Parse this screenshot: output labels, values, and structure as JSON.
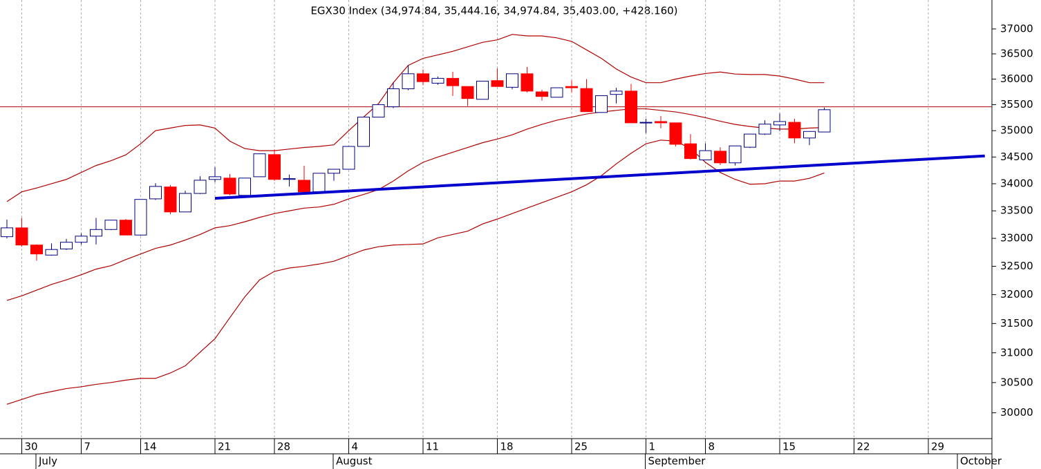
{
  "chart_data": {
    "type": "candlestick",
    "title": "EGX30 Index (34,974.84, 35,444.16, 34,974.84, 35,403.00, +428.160)",
    "categories": [
      null,
      "30",
      null,
      null,
      null,
      "7",
      null,
      null,
      null,
      "14",
      null,
      null,
      null,
      null,
      "21",
      null,
      null,
      null,
      "28",
      null,
      null,
      null,
      null,
      "4",
      null,
      null,
      null,
      null,
      "11",
      null,
      null,
      null,
      null,
      "18",
      null,
      null,
      null,
      null,
      "25",
      null,
      null,
      null,
      null,
      "1",
      null,
      null,
      null,
      "8",
      null,
      null,
      null,
      null,
      "15",
      null,
      null,
      null,
      null,
      "22",
      null,
      null,
      null,
      null,
      "29",
      null,
      null,
      null,
      null
    ],
    "month_labels": [
      null,
      null,
      "July",
      null,
      null,
      null,
      null,
      null,
      null,
      null,
      null,
      null,
      null,
      null,
      null,
      null,
      null,
      null,
      null,
      null,
      null,
      null,
      "August",
      null,
      null,
      null,
      null,
      null,
      null,
      null,
      null,
      null,
      null,
      null,
      null,
      null,
      null,
      null,
      null,
      null,
      null,
      null,
      null,
      "September",
      null,
      null,
      null,
      null,
      null,
      null,
      null,
      null,
      null,
      null,
      null,
      null,
      null,
      null,
      null,
      null,
      null,
      null,
      null,
      null,
      "October",
      null,
      null
    ],
    "open": [
      33030,
      33190,
      32880,
      32700,
      32810,
      32930,
      33040,
      33160,
      33330,
      33060,
      33720,
      33940,
      33480,
      33820,
      34080,
      34105,
      33785,
      34130,
      34545,
      34080,
      34065,
      33850,
      34195,
      34270,
      34700,
      35260,
      35460,
      35810,
      36105,
      35920,
      36015,
      35855,
      35605,
      35970,
      35840,
      36105,
      35750,
      35645,
      35855,
      35815,
      35350,
      35700,
      35765,
      35150,
      35175,
      35150,
      34750,
      34445,
      34610,
      34390,
      34685,
      34935,
      35110,
      35160,
      34860,
      34974.84,
      null,
      null,
      null,
      null,
      null,
      null,
      null,
      null,
      null,
      null,
      null
    ],
    "high": [
      33340,
      33370,
      32890,
      32910,
      32990,
      33090,
      33370,
      33330,
      33350,
      33710,
      34010,
      33975,
      33870,
      34140,
      34310,
      34180,
      34105,
      34560,
      34640,
      34170,
      34335,
      34195,
      34270,
      34700,
      35260,
      35500,
      35930,
      36270,
      36190,
      36050,
      36145,
      35855,
      35960,
      36210,
      36105,
      36240,
      35790,
      35830,
      35975,
      36000,
      35675,
      35830,
      35905,
      35230,
      35280,
      35150,
      34935,
      34760,
      34685,
      34710,
      34935,
      35200,
      35330,
      35230,
      34985,
      35444.16,
      null,
      null,
      null,
      null,
      null,
      null,
      null,
      null,
      null,
      null,
      null
    ],
    "low": [
      33000,
      32850,
      32600,
      32690,
      32790,
      32890,
      32890,
      33150,
      33060,
      33050,
      33700,
      33440,
      33480,
      33810,
      34030,
      33785,
      33770,
      34130,
      34055,
      33950,
      33825,
      33835,
      34055,
      34270,
      34700,
      35260,
      35435,
      35785,
      35880,
      35890,
      35670,
      35475,
      35605,
      35855,
      35800,
      35740,
      35580,
      35645,
      35740,
      35365,
      35340,
      35525,
      35150,
      34955,
      35045,
      34700,
      34455,
      34445,
      34350,
      34340,
      34670,
      34920,
      34990,
      34760,
      34725,
      34974.84,
      null,
      null,
      null,
      null,
      null,
      null,
      null,
      null,
      null,
      null,
      null
    ],
    "close": [
      33190,
      32880,
      32720,
      32800,
      32930,
      33040,
      33160,
      33330,
      33060,
      33710,
      33950,
      33480,
      33820,
      34065,
      34130,
      33810,
      34105,
      34560,
      34080,
      34095,
      33850,
      34195,
      34270,
      34700,
      35260,
      35500,
      35810,
      36105,
      35950,
      36015,
      35870,
      35620,
      35960,
      35855,
      36105,
      35765,
      35660,
      35830,
      35830,
      35365,
      35675,
      35765,
      35150,
      35160,
      35150,
      34740,
      34470,
      34620,
      34390,
      34710,
      34935,
      35125,
      35175,
      34860,
      34985,
      35403.0,
      null,
      null,
      null,
      null,
      null,
      null,
      null,
      null,
      null,
      null,
      null
    ],
    "up_color": "#ffffff",
    "up_edge_color": "#000080",
    "down_color": "#ff0000",
    "bands": [
      {
        "color": "#b00000",
        "values": [
          33670,
          33850,
          33920,
          34000,
          34080,
          34210,
          34340,
          34430,
          34540,
          34750,
          35000,
          35050,
          35100,
          35110,
          35050,
          34800,
          34660,
          34620,
          34620,
          34650,
          34680,
          34700,
          34730,
          35000,
          35260,
          35520,
          35930,
          36270,
          36410,
          36480,
          36550,
          36640,
          36730,
          36780,
          36890,
          36860,
          36860,
          36820,
          36750,
          36580,
          36410,
          36200,
          36040,
          35930,
          35930,
          36000,
          36060,
          36110,
          36140,
          36100,
          36090,
          36090,
          36060,
          36000,
          35930,
          35930,
          null,
          null,
          null,
          null,
          null,
          null,
          null,
          null,
          null,
          null,
          null
        ]
      },
      {
        "color": "#b00000",
        "values": [
          31900,
          31980,
          32080,
          32180,
          32260,
          32350,
          32450,
          32510,
          32620,
          32720,
          32820,
          32880,
          32970,
          33070,
          33190,
          33230,
          33300,
          33380,
          33450,
          33500,
          33550,
          33570,
          33620,
          33720,
          33800,
          33890,
          34050,
          34240,
          34400,
          34500,
          34590,
          34680,
          34770,
          34840,
          34920,
          35030,
          35120,
          35200,
          35260,
          35320,
          35360,
          35390,
          35420,
          35420,
          35390,
          35360,
          35310,
          35250,
          35180,
          35120,
          35080,
          35050,
          35030,
          35030,
          35050,
          35060,
          null,
          null,
          null,
          null,
          null,
          null,
          null,
          null,
          null,
          null,
          null
        ]
      },
      {
        "color": "#b00000",
        "values": [
          30140,
          30220,
          30300,
          30350,
          30400,
          30430,
          30470,
          30500,
          30540,
          30570,
          30570,
          30660,
          30780,
          31010,
          31240,
          31600,
          31960,
          32260,
          32410,
          32470,
          32500,
          32540,
          32590,
          32690,
          32790,
          32850,
          32880,
          32890,
          32900,
          33010,
          33070,
          33130,
          33260,
          33350,
          33450,
          33550,
          33650,
          33750,
          33850,
          33980,
          34150,
          34370,
          34570,
          34750,
          34820,
          34800,
          34660,
          34400,
          34210,
          34080,
          33990,
          34000,
          34050,
          34050,
          34100,
          34200,
          null,
          null,
          null,
          null,
          null,
          null,
          null,
          null,
          null,
          null,
          null
        ]
      }
    ],
    "hlines": [
      {
        "value": 35460,
        "color": "#b00000"
      }
    ],
    "trendlines": [
      {
        "x": [
          14,
          65.8
        ],
        "values": [
          33730,
          34520
        ],
        "color": "#0000cc"
      }
    ],
    "ylim": [
      29580,
      37590
    ],
    "yticks": [
      30000,
      30500,
      31000,
      31500,
      32000,
      32500,
      33000,
      33500,
      34000,
      34500,
      35000,
      35500,
      36000,
      36500,
      37000
    ],
    "log_scale": true,
    "grid": "x"
  }
}
